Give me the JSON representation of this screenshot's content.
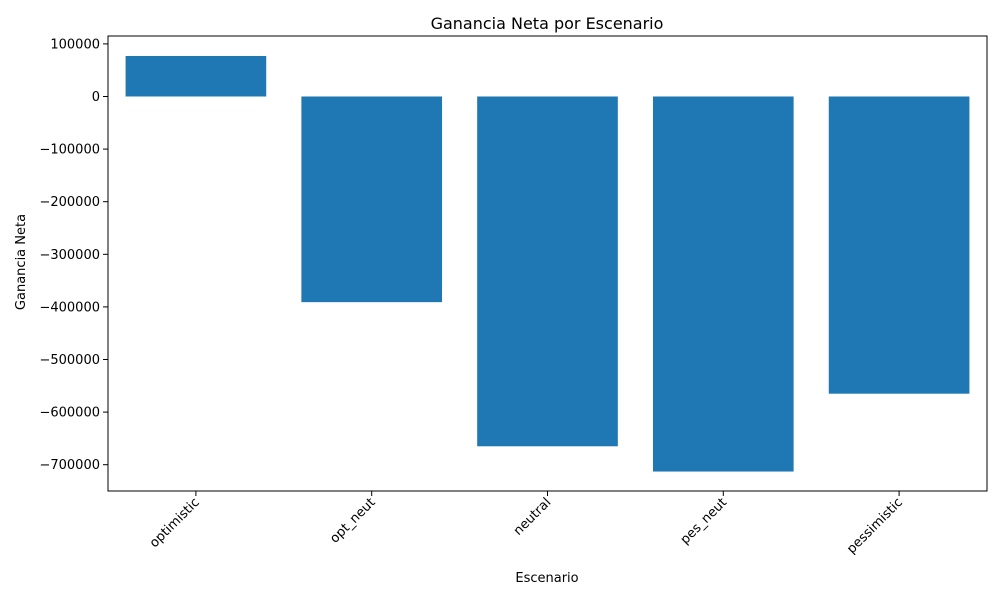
{
  "chart_data": {
    "type": "bar",
    "title": "Ganancia Neta por Escenario",
    "xlabel": "Escenario",
    "ylabel": "Ganancia Neta",
    "categories": [
      "optimistic",
      "opt_neut",
      "neutral",
      "pes_neut",
      "pessimistic"
    ],
    "values": [
      77000,
      -391000,
      -665000,
      -713000,
      -565000
    ],
    "ylim": [
      -750000,
      115000
    ],
    "yticks": [
      100000,
      0,
      -100000,
      -200000,
      -300000,
      -400000,
      -500000,
      -600000,
      -700000
    ],
    "ytick_labels": [
      "100000",
      "0",
      "−100000",
      "−200000",
      "−300000",
      "−400000",
      "−500000",
      "−600000",
      "−700000"
    ],
    "x_tick_rotation": "45 degrees",
    "bar_color": "#1f77b4",
    "grid": false,
    "legend": "none"
  }
}
